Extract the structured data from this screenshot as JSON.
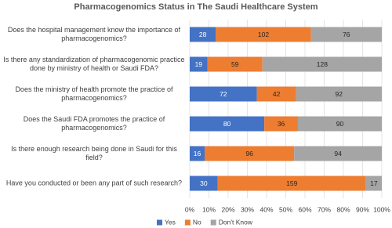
{
  "chart_data": {
    "type": "bar",
    "orientation": "horizontal",
    "stacking": "percent",
    "title": "Pharmacogenomics Status in The Saudi Healthcare System",
    "categories": [
      "Does the hospital management know the importance of pharmacogenomics?",
      "Is there any standardization of pharmacogenomic practice done by ministry of health or Saudi FDA?",
      "Does the ministry of health promote the practice of pharmacogenomics?",
      "Does the Saudi FDA promotes the practice of pharmacogenomics?",
      "Is there enough research being done in Saudi for this field?",
      "Have you conducted or been any part of such research?"
    ],
    "series": [
      {
        "name": "Yes",
        "color": "#4472c4",
        "values": [
          28,
          19,
          72,
          80,
          16,
          30
        ]
      },
      {
        "name": "No",
        "color": "#ed7d31",
        "values": [
          102,
          59,
          42,
          36,
          96,
          159
        ]
      },
      {
        "name": "Don't Know",
        "color": "#a5a5a5",
        "values": [
          76,
          128,
          92,
          90,
          94,
          17
        ]
      }
    ],
    "xlim": [
      0,
      100
    ],
    "xticks": [
      {
        "value": 0,
        "label": "0%"
      },
      {
        "value": 10,
        "label": "10%"
      },
      {
        "value": 20,
        "label": "20%"
      },
      {
        "value": 30,
        "label": "30%"
      },
      {
        "value": 40,
        "label": "40%"
      },
      {
        "value": 50,
        "label": "50%"
      },
      {
        "value": 60,
        "label": "60%"
      },
      {
        "value": 70,
        "label": "70%"
      },
      {
        "value": 80,
        "label": "80%"
      },
      {
        "value": 90,
        "label": "90%"
      },
      {
        "value": 100,
        "label": "100%"
      }
    ],
    "grid": true,
    "legend": "bottom"
  }
}
